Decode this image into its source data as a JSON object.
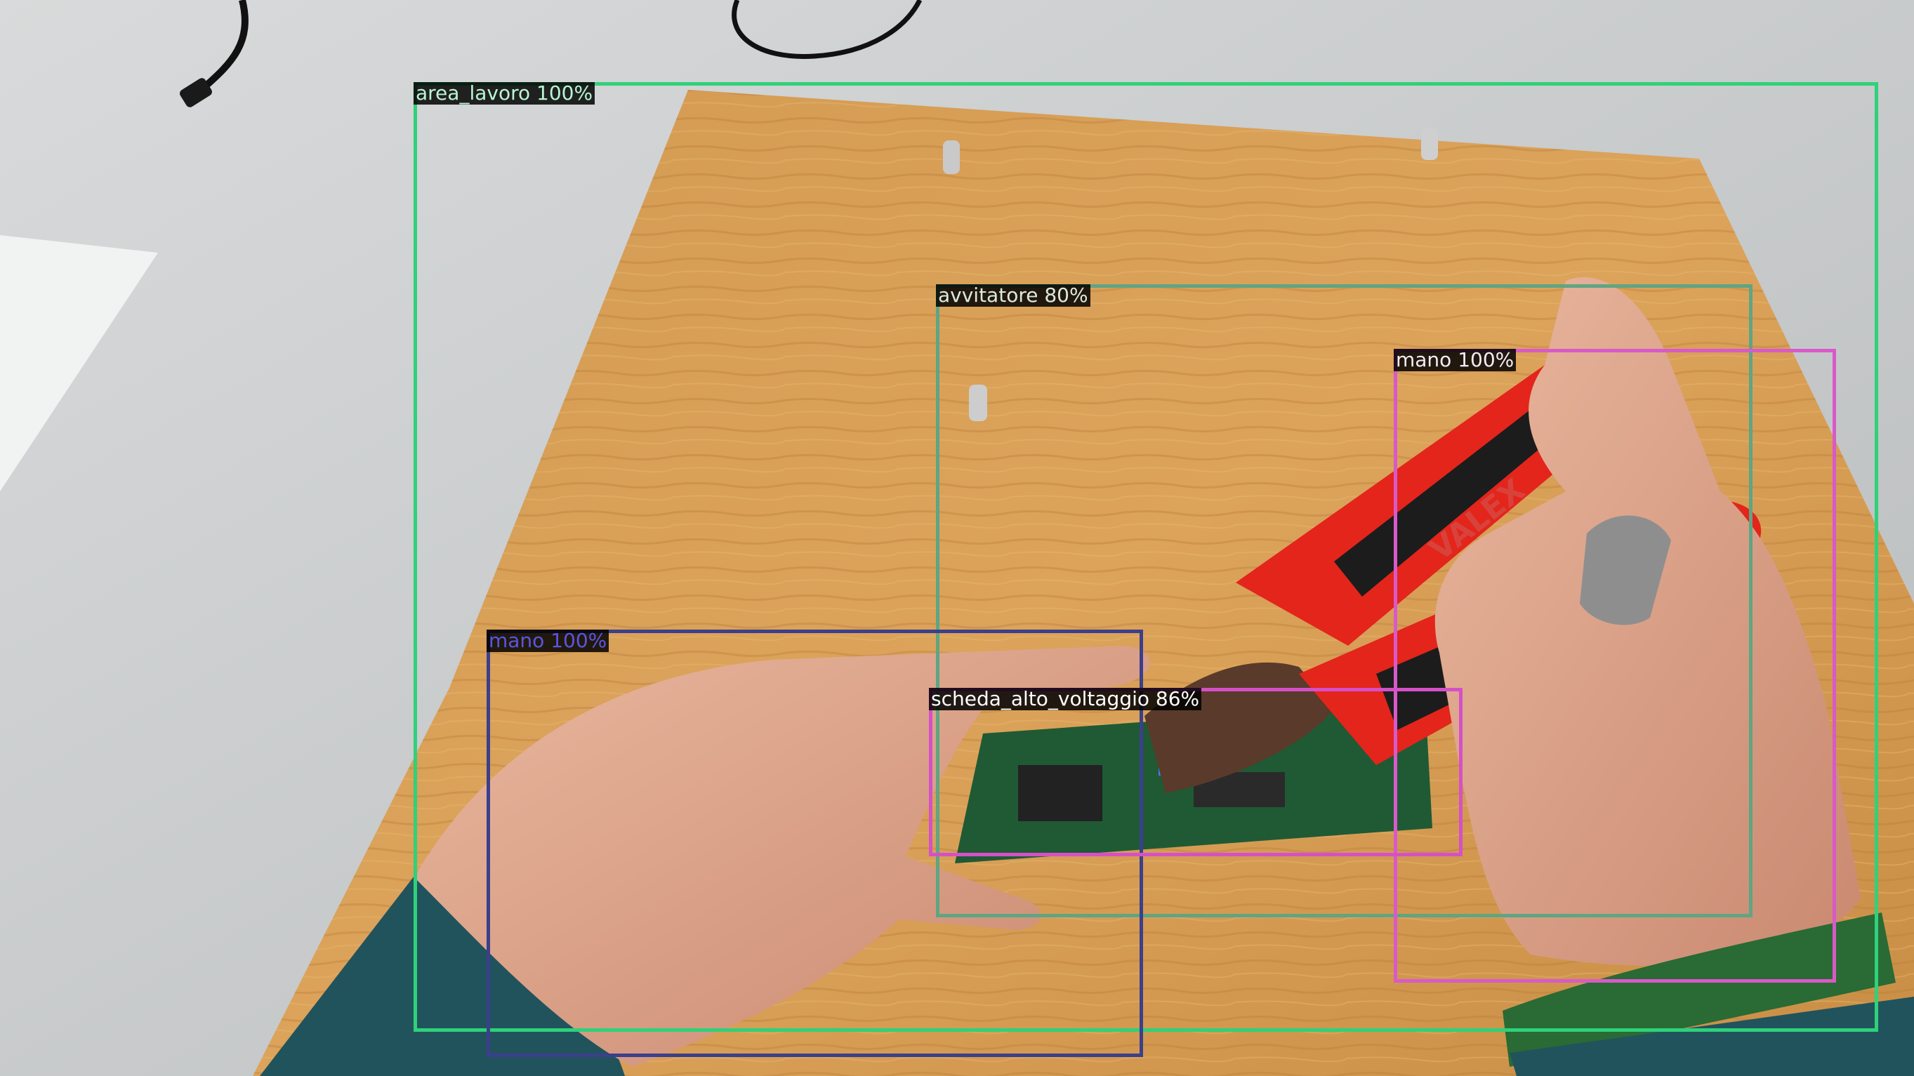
{
  "detections": [
    {
      "label": "area_lavoro 100%",
      "color": "#2fd17a"
    },
    {
      "label": "avvitatore 80%",
      "color": "#5fa583"
    },
    {
      "label": "mano 100%",
      "color": "#d85ac8"
    },
    {
      "label": "mano 100%",
      "color": "#3b3f8c"
    },
    {
      "label": "scheda_alto_voltaggio 86%",
      "color": "#d550c8"
    }
  ],
  "board": {
    "brand": "VALEX"
  }
}
